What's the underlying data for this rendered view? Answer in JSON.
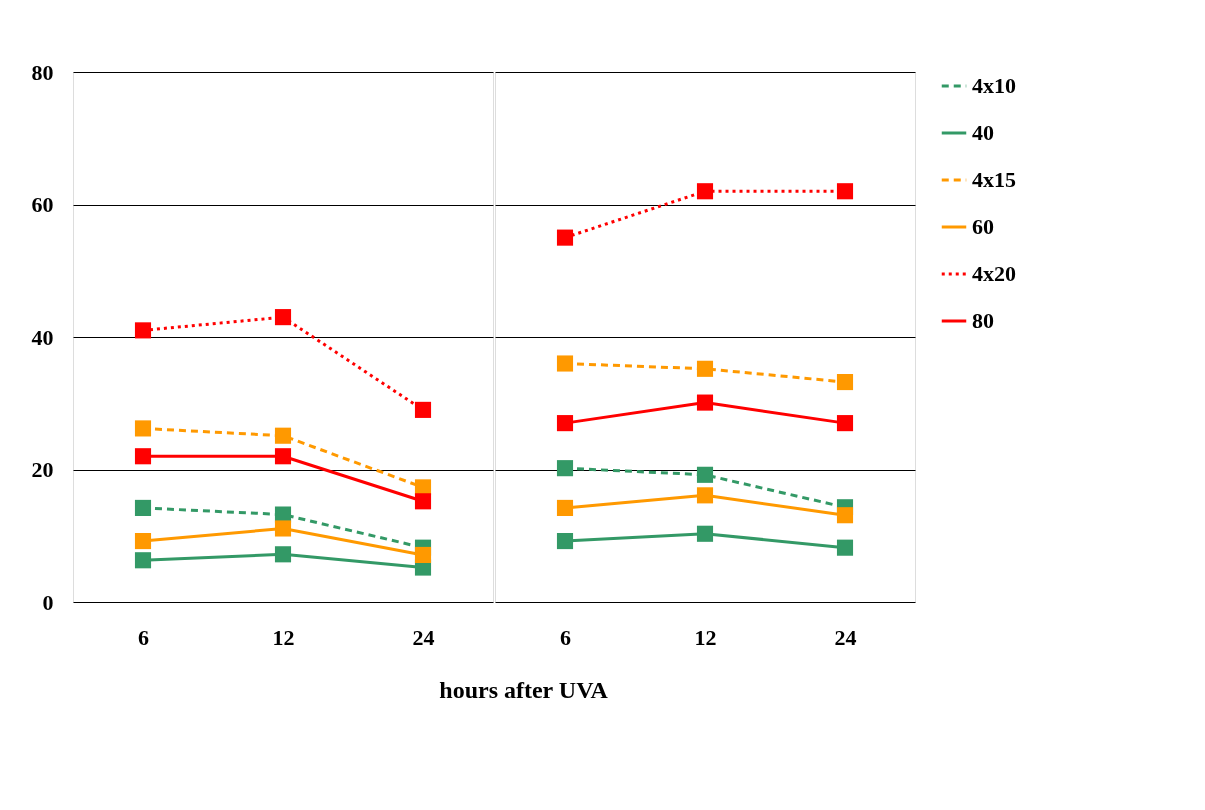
{
  "chart_data": [
    {
      "type": "line",
      "categories": [
        "6",
        "12",
        "24"
      ],
      "xlabel": "hours after UVA",
      "ylim": [
        0,
        80
      ],
      "yticks": [
        0,
        20,
        40,
        60,
        80
      ],
      "grid": "y",
      "legend": false,
      "marker": "square",
      "series": [
        {
          "color": "#339966",
          "line_style": "dashed",
          "values": [
            14.2,
            13.2,
            8.2
          ]
        },
        {
          "color": "#339966",
          "line_style": "solid",
          "values": [
            6.3,
            7.2,
            5.2
          ]
        },
        {
          "color": "#ff9900",
          "line_style": "dashed",
          "values": [
            26.2,
            25.1,
            17.3
          ]
        },
        {
          "color": "#ff9900",
          "line_style": "solid",
          "values": [
            9.2,
            11.1,
            7.1
          ]
        },
        {
          "color": "#ff0000",
          "line_style": "dotted",
          "values": [
            41.0,
            43.0,
            29.0
          ]
        },
        {
          "color": "#ff0000",
          "line_style": "solid",
          "values": [
            22.0,
            22.0,
            15.2
          ]
        }
      ]
    },
    {
      "type": "line",
      "categories": [
        "6",
        "12",
        "24"
      ],
      "ylim": [
        0,
        80
      ],
      "yticks": [
        0,
        20,
        40,
        60,
        80
      ],
      "grid": "y",
      "legend": "right",
      "marker": "square",
      "tick_labels": "x",
      "series": [
        {
          "name": "4x10",
          "color": "#339966",
          "line_style": "dashed",
          "values": [
            20.2,
            19.2,
            14.3
          ]
        },
        {
          "name": "40",
          "color": "#339966",
          "line_style": "solid",
          "values": [
            9.2,
            10.3,
            8.2
          ]
        },
        {
          "name": "4x15",
          "color": "#ff9900",
          "line_style": "dashed",
          "values": [
            36.0,
            35.2,
            33.2
          ]
        },
        {
          "name": "60",
          "color": "#ff9900",
          "line_style": "solid",
          "values": [
            14.2,
            16.1,
            13.1
          ]
        },
        {
          "name": "4x20",
          "color": "#ff0000",
          "line_style": "dotted",
          "values": [
            55.0,
            62.0,
            62.0
          ]
        },
        {
          "name": "80",
          "color": "#ff0000",
          "line_style": "solid",
          "values": [
            27.0,
            30.1,
            27.0
          ]
        }
      ]
    }
  ]
}
